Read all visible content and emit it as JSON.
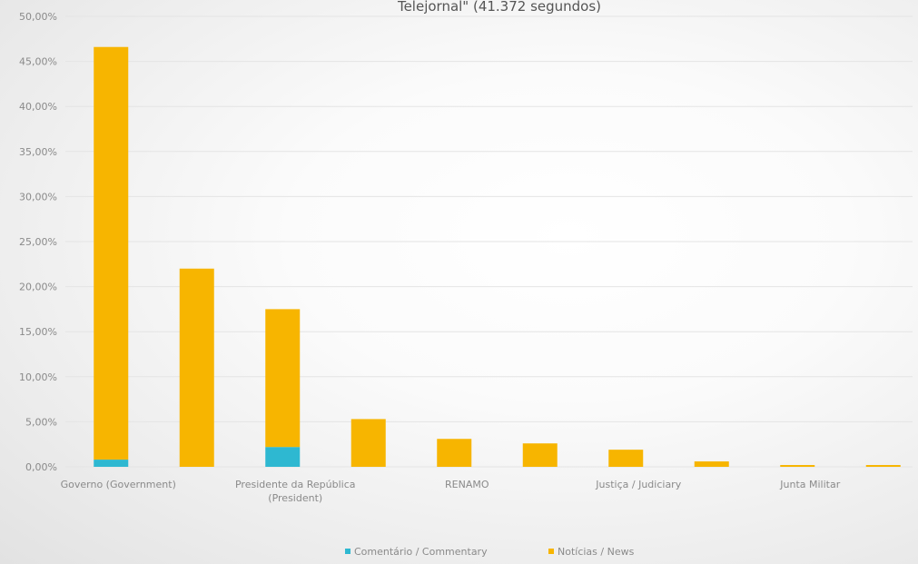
{
  "chart_data": {
    "type": "bar",
    "stacked": true,
    "title": "Telejornal\" (41.372 segundos)",
    "xlabel": "",
    "ylabel": "",
    "ylim": [
      0,
      50
    ],
    "y_ticks": [
      "0,00%",
      "5,00%",
      "10,00%",
      "15,00%",
      "20,00%",
      "25,00%",
      "30,00%",
      "35,00%",
      "40,00%",
      "45,00%",
      "50,00%"
    ],
    "categories": [
      "Governo (Government)",
      "",
      "Presidente da República (President)",
      "",
      "RENAMO",
      "",
      "Justiça / Judiciary",
      "",
      "Junta Militar",
      ""
    ],
    "category_label_lines": [
      [
        "Governo (Government)"
      ],
      [],
      [
        "Presidente da República",
        "(President)"
      ],
      [],
      [
        "RENAMO"
      ],
      [],
      [
        "Justiça / Judiciary"
      ],
      [],
      [
        "Junta Militar"
      ],
      []
    ],
    "series": [
      {
        "name": "Comentário / Commentary",
        "color": "#2eb8d1",
        "values": [
          0.8,
          0,
          2.2,
          0,
          0,
          0,
          0,
          0,
          0,
          0
        ]
      },
      {
        "name": "Notícias / News",
        "color": "#f7b500",
        "values": [
          45.8,
          22.0,
          15.3,
          5.3,
          3.1,
          2.6,
          1.9,
          0.6,
          0.2,
          0.2
        ]
      }
    ],
    "grid": true,
    "legend_position": "bottom"
  }
}
